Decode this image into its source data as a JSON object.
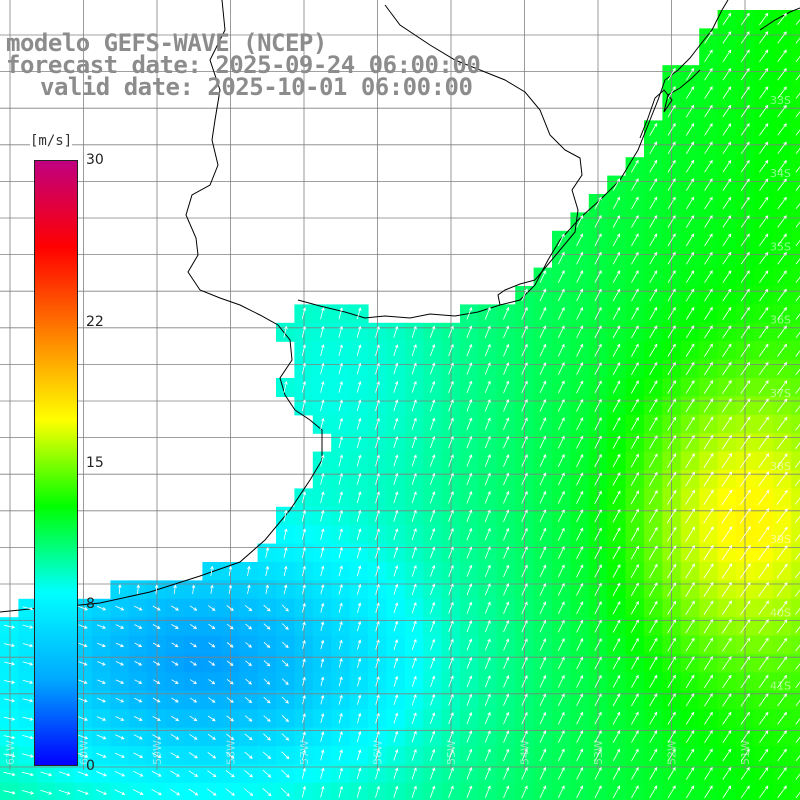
{
  "title": {
    "line1": "modelo GEFS-WAVE (NCEP)",
    "line2": "forecast date: 2025-09-24 06:00:00",
    "line3": "valid date: 2025-10-01 06:00:00"
  },
  "legend": {
    "unit": "[m/s]",
    "min": 0,
    "max": 30,
    "ticks": [
      {
        "label": "30",
        "value": 30
      },
      {
        "label": "22",
        "value": 22
      },
      {
        "label": "15",
        "value": 15
      },
      {
        "label": "8",
        "value": 8
      },
      {
        "label": "0",
        "value": 0
      }
    ],
    "colors": [
      "#0000ff",
      "#00aaff",
      "#00ffff",
      "#00ff00",
      "#ffff00",
      "#ff8000",
      "#ff0000",
      "#c00080"
    ]
  },
  "map": {
    "lat_labels": [
      "33S",
      "34S",
      "35S",
      "36S",
      "37S",
      "38S",
      "39S",
      "40S",
      "41S"
    ],
    "lon_labels": [
      "61W",
      "60W",
      "59W",
      "58W",
      "57W",
      "56W",
      "55W",
      "54W",
      "53W",
      "52W",
      "51W"
    ],
    "coast_color": "#000000",
    "grid_color": "#808080"
  }
}
